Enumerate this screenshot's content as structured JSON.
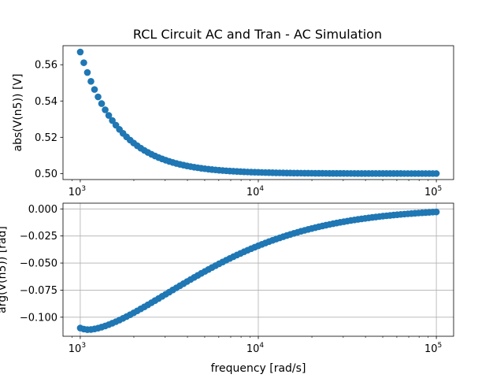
{
  "title": "RCL Circuit AC and Tran - AC Simulation",
  "chart_data": [
    {
      "type": "scatter",
      "title": "RCL Circuit AC and Tran - AC Simulation",
      "xscale": "log",
      "xlim": [
        800,
        125000
      ],
      "ylim": [
        0.4967,
        0.5705
      ],
      "ylabel": "abs(V(n5)) [V]",
      "xlabel": "",
      "grid": false,
      "xticks": [
        1000,
        10000,
        100000
      ],
      "xtick_labels": [
        {
          "base": "10",
          "exp": "3"
        },
        {
          "base": "10",
          "exp": "4"
        },
        {
          "base": "10",
          "exp": "5"
        }
      ],
      "yticks": [
        0.5,
        0.52,
        0.54,
        0.56
      ],
      "ytick_labels": [
        "0.50",
        "0.52",
        "0.54",
        "0.56"
      ],
      "color": "#1f77b4",
      "curve": {
        "kind": "magnitude",
        "f_start": 1000,
        "f_end": 100000,
        "n_points": 101,
        "a": 0.5,
        "b": 0.067,
        "f0": 1000
      }
    },
    {
      "type": "scatter",
      "title": "",
      "xscale": "log",
      "xlim": [
        800,
        125000
      ],
      "ylim": [
        -0.1176,
        0.0053
      ],
      "ylabel": "arg(V(n5)) [rad]",
      "xlabel": "frequency [rad/s]",
      "grid": true,
      "xticks": [
        1000,
        10000,
        100000
      ],
      "xtick_labels": [
        {
          "base": "10",
          "exp": "3"
        },
        {
          "base": "10",
          "exp": "4"
        },
        {
          "base": "10",
          "exp": "5"
        }
      ],
      "yticks": [
        0.0,
        -0.025,
        -0.05,
        -0.075,
        -0.1
      ],
      "ytick_labels": [
        "0.000",
        "−0.025",
        "−0.050",
        "−0.075",
        "−0.100"
      ],
      "color": "#1f77b4",
      "curve": {
        "kind": "phase",
        "f_start": 1000,
        "f_end": 100000,
        "n_points": 101,
        "peak_f": 1120,
        "peak_y": -0.1115,
        "end_y": -0.0028
      }
    }
  ]
}
